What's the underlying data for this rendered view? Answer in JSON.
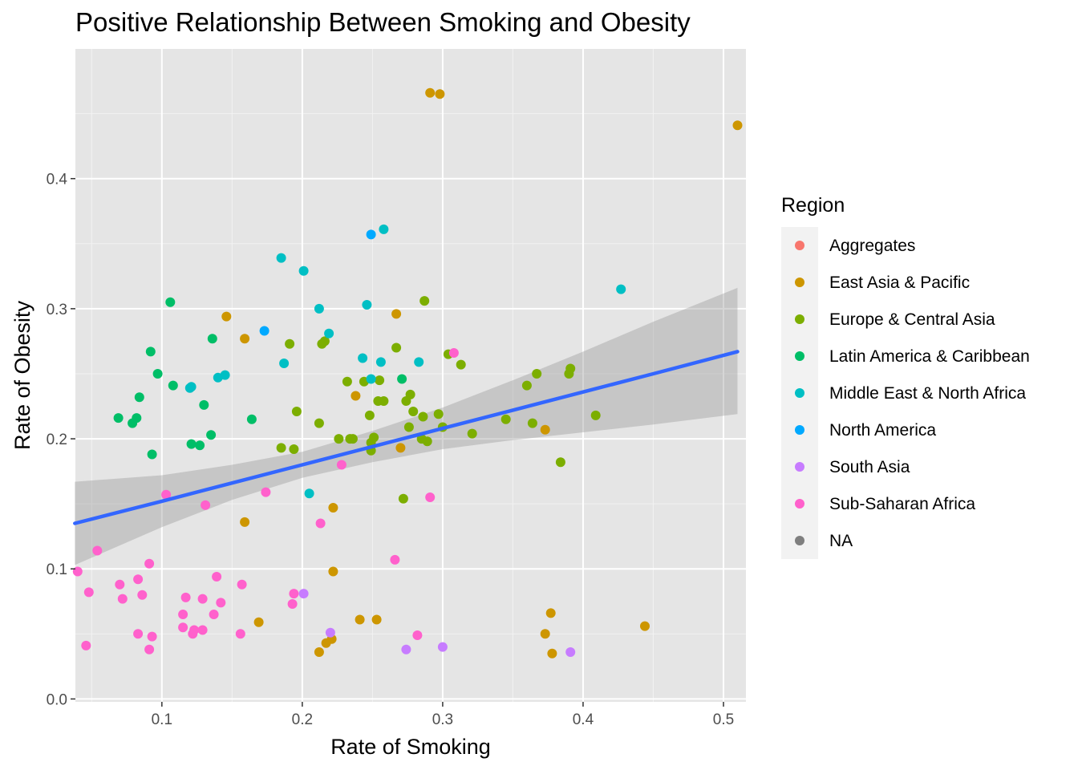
{
  "chart_data": {
    "type": "scatter",
    "title": "Positive Relationship Between Smoking and Obesity",
    "xlabel": "Rate of Smoking",
    "ylabel": "Rate of Obesity",
    "xlim": [
      0.0384,
      0.516
    ],
    "ylim": [
      -0.0022,
      0.4997
    ],
    "x_ticks": [
      0.1,
      0.2,
      0.3,
      0.4,
      0.5
    ],
    "x_tick_labels": [
      "0.1",
      "0.2",
      "0.3",
      "0.4",
      "0.5"
    ],
    "y_ticks": [
      0.0,
      0.1,
      0.2,
      0.3,
      0.4
    ],
    "y_tick_labels": [
      "0.0",
      "0.1",
      "0.2",
      "0.3",
      "0.4"
    ],
    "grid": true,
    "panel_background": "#e5e5e5",
    "legend": {
      "title": "Region",
      "position": "right",
      "entries": [
        {
          "key": "Aggregates",
          "label": "Aggregates",
          "color": "#F8766D"
        },
        {
          "key": "East Asia & Pacific",
          "label": "East Asia & Pacific",
          "color": "#CD9600"
        },
        {
          "key": "Europe & Central Asia",
          "label": "Europe & Central Asia",
          "color": "#7CAE00"
        },
        {
          "key": "Latin America & Caribbean",
          "label": "Latin America & Caribbean",
          "color": "#00BE67"
        },
        {
          "key": "Middle East & North Africa",
          "label": "Middle East & North Africa",
          "color": "#00BFC4"
        },
        {
          "key": "North America",
          "label": "North America",
          "color": "#00A9FF"
        },
        {
          "key": "South Asia",
          "label": "South Asia",
          "color": "#C77CFF"
        },
        {
          "key": "Sub-Saharan Africa",
          "label": "Sub-Saharan Africa",
          "color": "#FF61CC"
        },
        {
          "key": "NA",
          "label": "NA",
          "color": "#7F7F7F"
        }
      ]
    },
    "trend": {
      "method": "linear",
      "color": "#3366FF",
      "band_color": "#999999",
      "x": [
        0.038,
        0.1,
        0.15,
        0.2,
        0.25,
        0.3,
        0.35,
        0.4,
        0.45,
        0.51
      ],
      "fit": [
        0.135,
        0.152,
        0.166,
        0.18,
        0.194,
        0.208,
        0.222,
        0.236,
        0.25,
        0.267
      ],
      "lower": [
        0.103,
        0.132,
        0.153,
        0.17,
        0.182,
        0.192,
        0.199,
        0.205,
        0.211,
        0.219
      ],
      "upper": [
        0.167,
        0.172,
        0.18,
        0.19,
        0.206,
        0.224,
        0.245,
        0.267,
        0.29,
        0.316
      ]
    },
    "series": [
      {
        "name": "East Asia & Pacific",
        "color": "#CD9600",
        "points": [
          [
            0.291,
            0.466
          ],
          [
            0.298,
            0.465
          ],
          [
            0.51,
            0.441
          ],
          [
            0.267,
            0.296
          ],
          [
            0.146,
            0.294
          ],
          [
            0.159,
            0.277
          ],
          [
            0.238,
            0.233
          ],
          [
            0.373,
            0.207
          ],
          [
            0.27,
            0.193
          ],
          [
            0.222,
            0.147
          ],
          [
            0.159,
            0.136
          ],
          [
            0.222,
            0.098
          ],
          [
            0.377,
            0.066
          ],
          [
            0.241,
            0.061
          ],
          [
            0.253,
            0.061
          ],
          [
            0.169,
            0.059
          ],
          [
            0.444,
            0.056
          ],
          [
            0.373,
            0.05
          ],
          [
            0.221,
            0.046
          ],
          [
            0.217,
            0.043
          ],
          [
            0.212,
            0.036
          ],
          [
            0.378,
            0.035
          ]
        ]
      },
      {
        "name": "Europe & Central Asia",
        "color": "#7CAE00",
        "points": [
          [
            0.287,
            0.306
          ],
          [
            0.267,
            0.27
          ],
          [
            0.304,
            0.265
          ],
          [
            0.191,
            0.273
          ],
          [
            0.214,
            0.273
          ],
          [
            0.216,
            0.275
          ],
          [
            0.313,
            0.257
          ],
          [
            0.391,
            0.254
          ],
          [
            0.39,
            0.25
          ],
          [
            0.367,
            0.25
          ],
          [
            0.36,
            0.241
          ],
          [
            0.232,
            0.244
          ],
          [
            0.244,
            0.244
          ],
          [
            0.255,
            0.245
          ],
          [
            0.277,
            0.234
          ],
          [
            0.274,
            0.229
          ],
          [
            0.254,
            0.229
          ],
          [
            0.258,
            0.229
          ],
          [
            0.196,
            0.221
          ],
          [
            0.279,
            0.221
          ],
          [
            0.286,
            0.217
          ],
          [
            0.248,
            0.218
          ],
          [
            0.297,
            0.219
          ],
          [
            0.409,
            0.218
          ],
          [
            0.345,
            0.215
          ],
          [
            0.364,
            0.212
          ],
          [
            0.212,
            0.212
          ],
          [
            0.276,
            0.209
          ],
          [
            0.3,
            0.209
          ],
          [
            0.321,
            0.204
          ],
          [
            0.226,
            0.2
          ],
          [
            0.234,
            0.2
          ],
          [
            0.236,
            0.2
          ],
          [
            0.251,
            0.201
          ],
          [
            0.285,
            0.2
          ],
          [
            0.289,
            0.198
          ],
          [
            0.249,
            0.197
          ],
          [
            0.185,
            0.193
          ],
          [
            0.194,
            0.192
          ],
          [
            0.249,
            0.191
          ],
          [
            0.384,
            0.182
          ],
          [
            0.272,
            0.154
          ]
        ]
      },
      {
        "name": "Latin America & Caribbean",
        "color": "#00BE67",
        "points": [
          [
            0.106,
            0.305
          ],
          [
            0.136,
            0.277
          ],
          [
            0.092,
            0.267
          ],
          [
            0.097,
            0.25
          ],
          [
            0.271,
            0.246
          ],
          [
            0.108,
            0.241
          ],
          [
            0.084,
            0.232
          ],
          [
            0.13,
            0.226
          ],
          [
            0.069,
            0.216
          ],
          [
            0.082,
            0.216
          ],
          [
            0.079,
            0.212
          ],
          [
            0.164,
            0.215
          ],
          [
            0.135,
            0.203
          ],
          [
            0.121,
            0.196
          ],
          [
            0.127,
            0.195
          ],
          [
            0.093,
            0.188
          ]
        ]
      },
      {
        "name": "Middle East & North Africa",
        "color": "#00BFC4",
        "points": [
          [
            0.258,
            0.361
          ],
          [
            0.185,
            0.339
          ],
          [
            0.201,
            0.329
          ],
          [
            0.427,
            0.315
          ],
          [
            0.246,
            0.303
          ],
          [
            0.212,
            0.3
          ],
          [
            0.219,
            0.281
          ],
          [
            0.243,
            0.262
          ],
          [
            0.256,
            0.259
          ],
          [
            0.283,
            0.259
          ],
          [
            0.187,
            0.258
          ],
          [
            0.12,
            0.239
          ],
          [
            0.121,
            0.24
          ],
          [
            0.145,
            0.249
          ],
          [
            0.14,
            0.247
          ],
          [
            0.249,
            0.246
          ],
          [
            0.205,
            0.158
          ]
        ]
      },
      {
        "name": "North America",
        "color": "#00A9FF",
        "points": [
          [
            0.249,
            0.357
          ],
          [
            0.173,
            0.283
          ]
        ]
      },
      {
        "name": "South Asia",
        "color": "#C77CFF",
        "points": [
          [
            0.201,
            0.081
          ],
          [
            0.22,
            0.051
          ],
          [
            0.274,
            0.038
          ],
          [
            0.3,
            0.04
          ],
          [
            0.391,
            0.036
          ]
        ]
      },
      {
        "name": "Sub-Saharan Africa",
        "color": "#FF61CC",
        "points": [
          [
            0.308,
            0.266
          ],
          [
            0.228,
            0.18
          ],
          [
            0.174,
            0.159
          ],
          [
            0.103,
            0.157
          ],
          [
            0.131,
            0.149
          ],
          [
            0.291,
            0.155
          ],
          [
            0.213,
            0.135
          ],
          [
            0.266,
            0.107
          ],
          [
            0.054,
            0.114
          ],
          [
            0.091,
            0.104
          ],
          [
            0.04,
            0.098
          ],
          [
            0.139,
            0.094
          ],
          [
            0.083,
            0.092
          ],
          [
            0.157,
            0.088
          ],
          [
            0.07,
            0.088
          ],
          [
            0.048,
            0.082
          ],
          [
            0.086,
            0.08
          ],
          [
            0.194,
            0.081
          ],
          [
            0.117,
            0.078
          ],
          [
            0.072,
            0.077
          ],
          [
            0.129,
            0.077
          ],
          [
            0.142,
            0.074
          ],
          [
            0.193,
            0.073
          ],
          [
            0.115,
            0.065
          ],
          [
            0.137,
            0.065
          ],
          [
            0.115,
            0.055
          ],
          [
            0.083,
            0.05
          ],
          [
            0.122,
            0.05
          ],
          [
            0.123,
            0.053
          ],
          [
            0.129,
            0.053
          ],
          [
            0.156,
            0.05
          ],
          [
            0.093,
            0.048
          ],
          [
            0.282,
            0.049
          ],
          [
            0.046,
            0.041
          ],
          [
            0.091,
            0.038
          ]
        ]
      },
      {
        "name": "NA",
        "color": "#7F7F7F",
        "points": []
      }
    ]
  }
}
